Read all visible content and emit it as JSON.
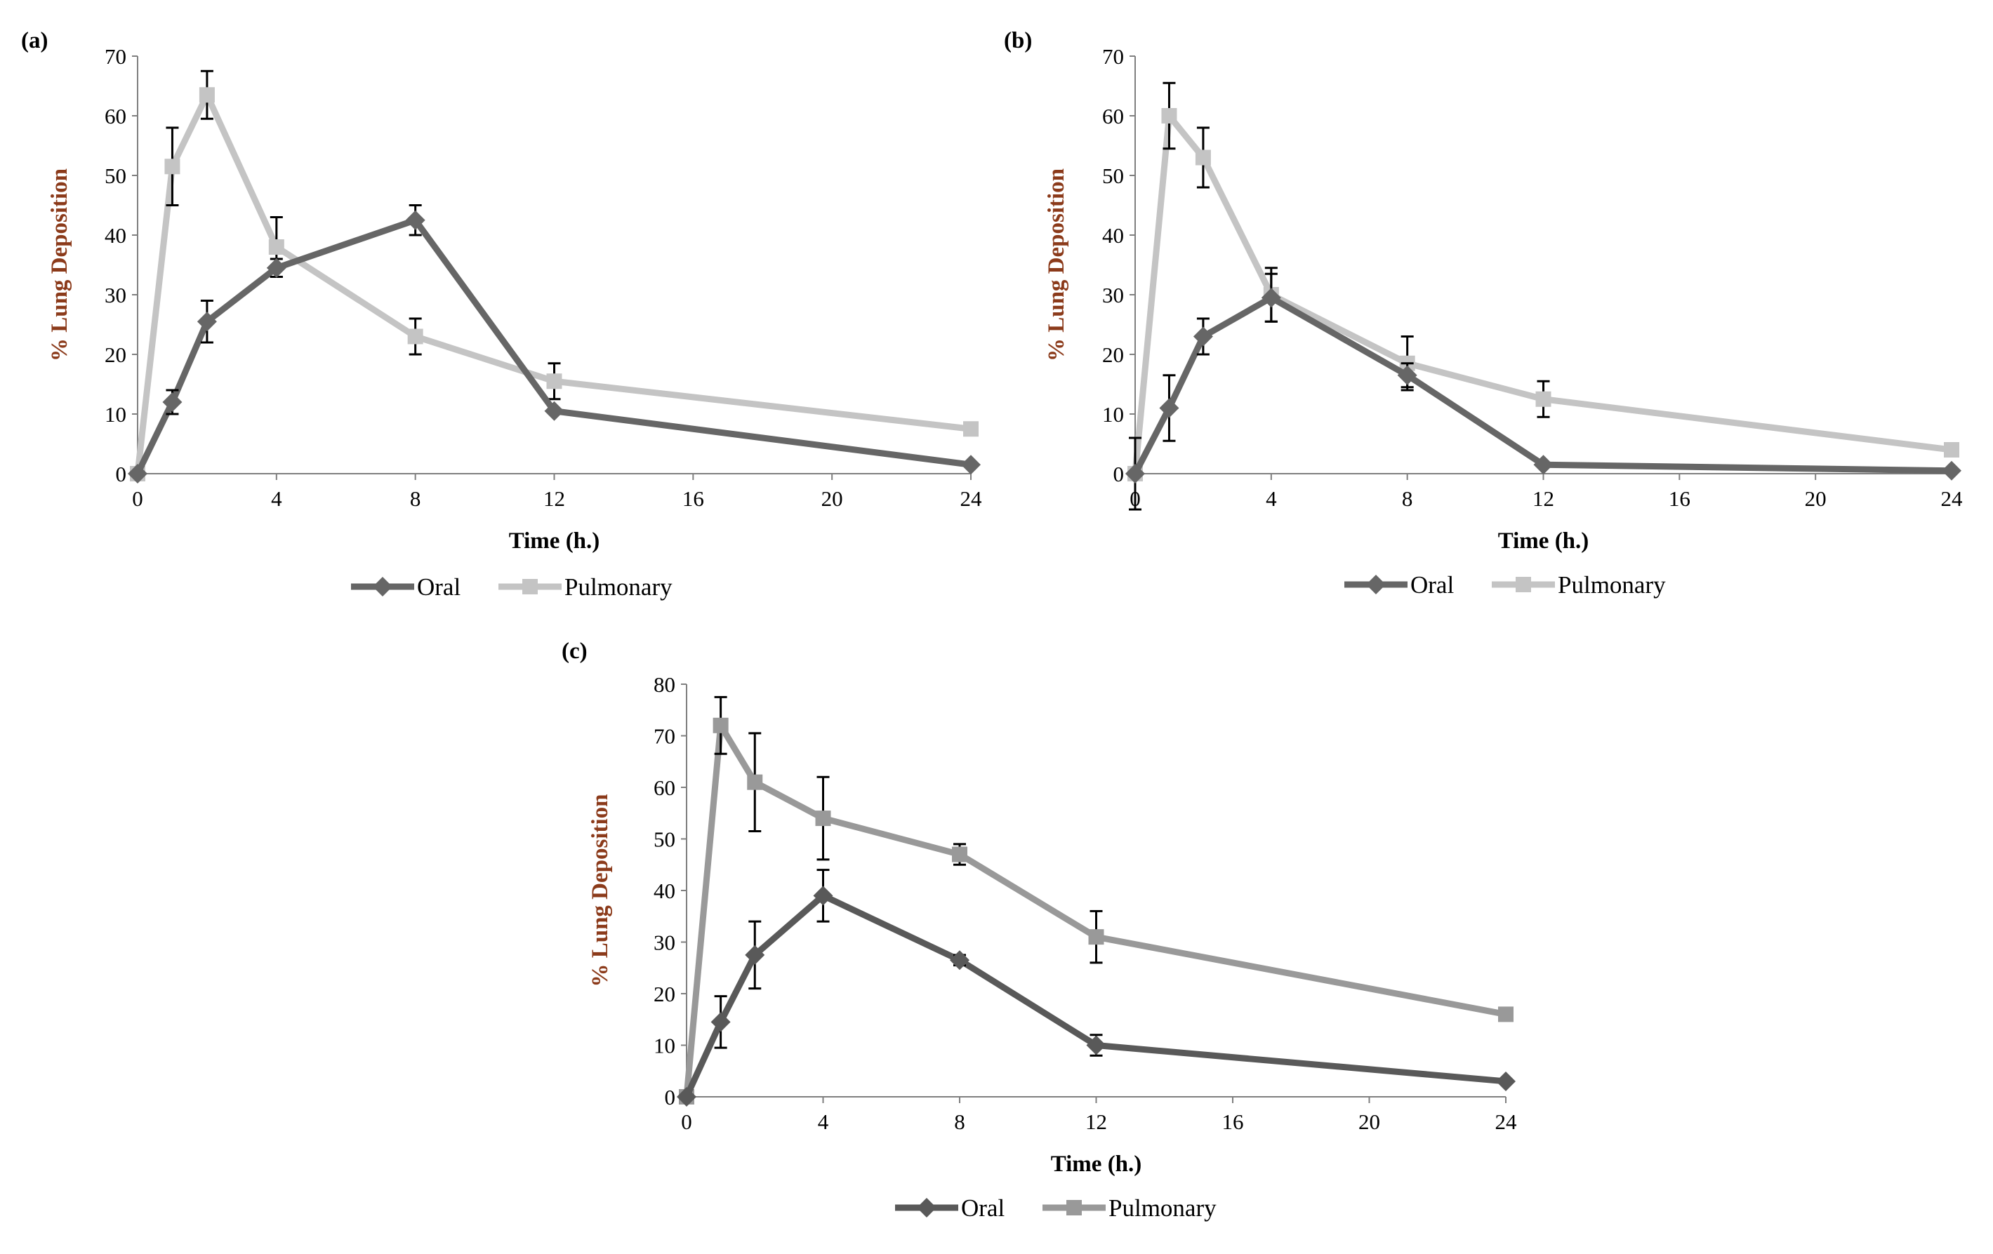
{
  "chart_data": [
    {
      "type": "line",
      "panel_label": "(a)",
      "xlabel": "Time (h.)",
      "ylabel": "% Lung Deposition",
      "xlim": [
        0,
        24
      ],
      "ylim": [
        0,
        70
      ],
      "x_ticks": [
        0,
        4,
        8,
        12,
        16,
        20,
        24
      ],
      "y_ticks": [
        0,
        10,
        20,
        30,
        40,
        50,
        60,
        70
      ],
      "legend_position": "bottom",
      "series": [
        {
          "name": "Oral",
          "marker": "diamond",
          "color": "#666666",
          "x": [
            0,
            1,
            2,
            4,
            8,
            12,
            24
          ],
          "y": [
            0,
            12,
            25.5,
            34.5,
            42.5,
            10.5,
            1.5
          ],
          "err": [
            0,
            2,
            3.5,
            1.5,
            2.5,
            0,
            0
          ]
        },
        {
          "name": "Pulmonary",
          "marker": "square",
          "color": "#c4c4c4",
          "x": [
            0,
            1,
            2,
            4,
            8,
            12,
            24
          ],
          "y": [
            0,
            51.5,
            63.5,
            38,
            23,
            15.5,
            7.5
          ],
          "err": [
            0,
            6.5,
            4,
            5,
            3,
            3,
            0
          ]
        }
      ]
    },
    {
      "type": "line",
      "panel_label": "(b)",
      "xlabel": "Time (h.)",
      "ylabel": "% Lung Deposition",
      "xlim": [
        0,
        24
      ],
      "ylim": [
        0,
        70
      ],
      "x_ticks": [
        0,
        4,
        8,
        12,
        16,
        20,
        24
      ],
      "y_ticks": [
        0,
        10,
        20,
        30,
        40,
        50,
        60,
        70
      ],
      "legend_position": "bottom",
      "series": [
        {
          "name": "Oral",
          "marker": "diamond",
          "color": "#666666",
          "x": [
            0,
            1,
            2,
            4,
            8,
            12,
            24
          ],
          "y": [
            0,
            11,
            23,
            29.5,
            16.5,
            1.5,
            0.5
          ],
          "err": [
            6,
            5.5,
            3,
            4,
            2,
            0,
            0
          ]
        },
        {
          "name": "Pulmonary",
          "marker": "square",
          "color": "#c4c4c4",
          "x": [
            0,
            1,
            2,
            4,
            8,
            12,
            24
          ],
          "y": [
            0,
            60,
            53,
            30,
            18.5,
            12.5,
            4
          ],
          "err": [
            0,
            5.5,
            5,
            4.5,
            4.5,
            3,
            0
          ]
        }
      ]
    },
    {
      "type": "line",
      "panel_label": "(c)",
      "xlabel": "Time (h.)",
      "ylabel": "% Lung Deposition",
      "xlim": [
        0,
        24
      ],
      "ylim": [
        0,
        80
      ],
      "x_ticks": [
        0,
        4,
        8,
        12,
        16,
        20,
        24
      ],
      "y_ticks": [
        0,
        10,
        20,
        30,
        40,
        50,
        60,
        70,
        80
      ],
      "legend_position": "bottom",
      "series": [
        {
          "name": "Oral",
          "marker": "diamond",
          "color": "#595959",
          "x": [
            0,
            1,
            2,
            4,
            8,
            12,
            24
          ],
          "y": [
            0,
            14.5,
            27.5,
            39,
            26.5,
            10,
            3
          ],
          "err": [
            0,
            5,
            6.5,
            5,
            1,
            2,
            0
          ]
        },
        {
          "name": "Pulmonary",
          "marker": "square",
          "color": "#999999",
          "x": [
            0,
            1,
            2,
            4,
            8,
            12,
            24
          ],
          "y": [
            0,
            72,
            61,
            54,
            47,
            31,
            16
          ],
          "err": [
            0,
            5.5,
            9.5,
            8,
            2,
            5,
            0
          ]
        }
      ]
    }
  ]
}
